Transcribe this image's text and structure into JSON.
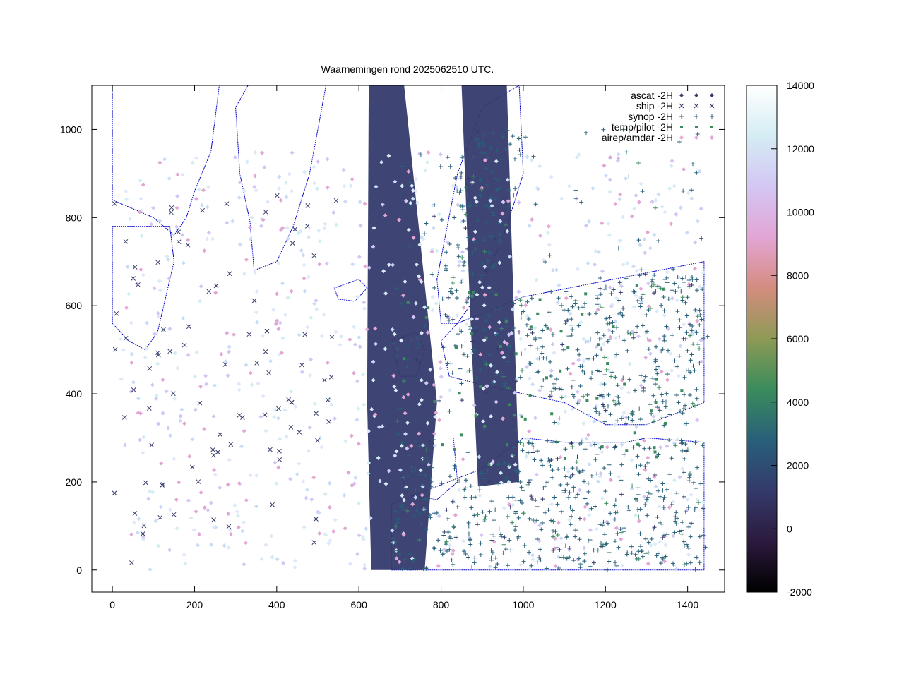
{
  "chart_data": {
    "type": "scatter",
    "title": "Waarnemingen rond 2025062510 UTC.",
    "xlabel": "",
    "ylabel": "",
    "xlim": [
      -50,
      1490
    ],
    "ylim": [
      -50,
      1100
    ],
    "xticks": [
      0,
      200,
      400,
      600,
      800,
      1000,
      1200,
      1400
    ],
    "yticks": [
      0,
      200,
      400,
      600,
      800,
      1000
    ],
    "grid": false,
    "legend_position": "top-right",
    "colorbar": {
      "min": -2000,
      "max": 14000,
      "ticks": [
        -2000,
        0,
        2000,
        4000,
        6000,
        8000,
        10000,
        12000,
        14000
      ],
      "colors": [
        "#000000",
        "#2c1a3e",
        "#343a6b",
        "#28607a",
        "#3a8c5c",
        "#8e9a55",
        "#d48c7f",
        "#e3a5d4",
        "#d3c6f4",
        "#d4ecf4",
        "#ffffff"
      ]
    },
    "series": [
      {
        "name": "ascat -2H",
        "marker": "diamond",
        "color": "#343a6b",
        "regions": [
          [
            624,
            1100,
            710,
            1100,
            790,
            380,
            760,
            0,
            630,
            0,
            620,
            380
          ],
          [
            850,
            1100,
            960,
            1100,
            990,
            200,
            890,
            190,
            870,
            600
          ]
        ]
      },
      {
        "name": "ship -2H",
        "marker": "x",
        "color": "#343a6b",
        "count": 90
      },
      {
        "name": "synop -2H",
        "marker": "plus",
        "color": "#28607a",
        "count": 1100
      },
      {
        "name": "temp/pilot -2H",
        "marker": "square",
        "color": "#3a8c5c",
        "count": 60
      },
      {
        "name": "airep/amdar -2H",
        "marker": "diamond",
        "color": "#e3a5d4",
        "count": 900
      }
    ]
  }
}
